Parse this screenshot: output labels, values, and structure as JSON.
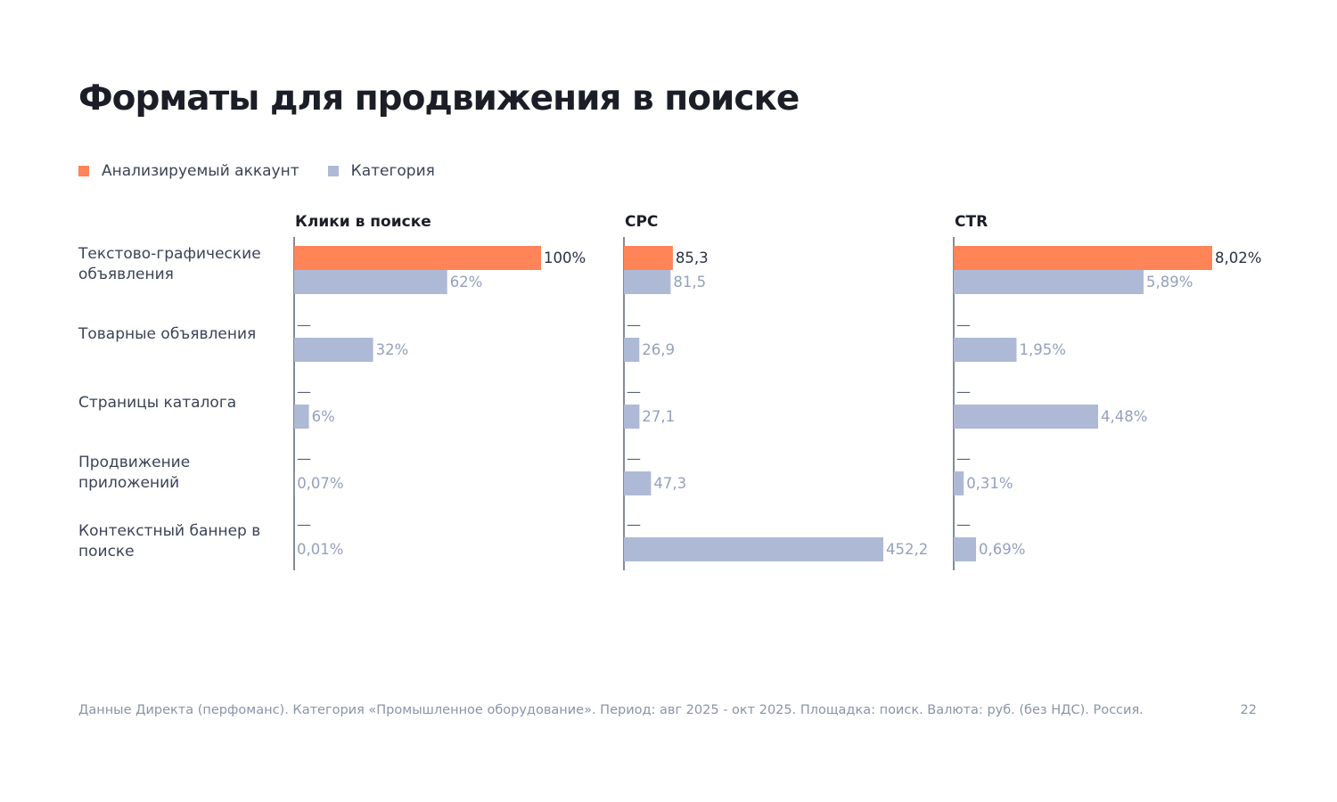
{
  "title": "Форматы для продвижения в поиске",
  "legend": [
    {
      "label": "Анализируемый аккаунт",
      "color": "#ff8457"
    },
    {
      "label": "Категория",
      "color": "#aeb9d6"
    }
  ],
  "categories": [
    "Текстово-графические объявления",
    "Товарные объявления",
    "Страницы каталога",
    "Продвижение приложений",
    "Контекстный баннер в поиске"
  ],
  "chart_data": [
    {
      "type": "bar",
      "title": "Клики в поиске",
      "categories": [
        "Текстово-графические объявления",
        "Товарные объявления",
        "Страницы каталога",
        "Продвижение приложений",
        "Контекстный баннер в поиске"
      ],
      "series": [
        {
          "name": "Анализируемый аккаунт",
          "values": [
            100,
            null,
            null,
            null,
            null
          ],
          "labels": [
            "100%",
            "—",
            "—",
            "—",
            "—"
          ]
        },
        {
          "name": "Категория",
          "values": [
            62,
            32,
            6,
            0.07,
            0.01
          ],
          "labels": [
            "62%",
            "32%",
            "6%",
            "0,07%",
            "0,01%"
          ]
        }
      ],
      "xlim": [
        0,
        100
      ]
    },
    {
      "type": "bar",
      "title": "CPC",
      "categories": [
        "Текстово-графические объявления",
        "Товарные объявления",
        "Страницы каталога",
        "Продвижение приложений",
        "Контекстный баннер в поиске"
      ],
      "series": [
        {
          "name": "Анализируемый аккаунт",
          "values": [
            85.3,
            null,
            null,
            null,
            null
          ],
          "labels": [
            "85,3",
            "—",
            "—",
            "—",
            "—"
          ]
        },
        {
          "name": "Категория",
          "values": [
            81.5,
            26.9,
            27.1,
            47.3,
            452.2
          ],
          "labels": [
            "81,5",
            "26,9",
            "27,1",
            "47,3",
            "452,2"
          ]
        }
      ],
      "xlim": [
        0,
        452.2
      ]
    },
    {
      "type": "bar",
      "title": "CTR",
      "categories": [
        "Текстово-графические объявления",
        "Товарные объявления",
        "Страницы каталога",
        "Продвижение приложений",
        "Контекстный баннер в поиске"
      ],
      "series": [
        {
          "name": "Анализируемый аккаунт",
          "values": [
            8.02,
            null,
            null,
            null,
            null
          ],
          "labels": [
            "8,02%",
            "—",
            "—",
            "—",
            "—"
          ]
        },
        {
          "name": "Категория",
          "values": [
            5.89,
            1.95,
            4.48,
            0.31,
            0.69
          ],
          "labels": [
            "5,89%",
            "1,95%",
            "4,48%",
            "0,31%",
            "0,69%"
          ]
        }
      ],
      "xlim": [
        0,
        8.02
      ]
    }
  ],
  "footer": "Данные Директа (перфоманс). Категория «Промышленное оборудование». Период: авг 2025 - окт 2025. Площадка: поиск. Валюта: руб. (без НДС). Россия.",
  "page_number": "22"
}
